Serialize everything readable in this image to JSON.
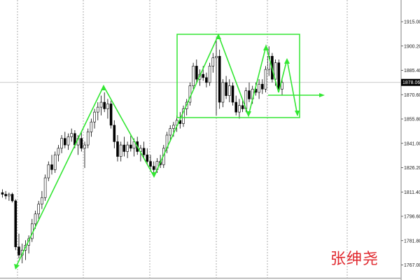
{
  "chart_data": {
    "type": "candlestick",
    "title": "",
    "ylim": [
      1763,
      1922
    ],
    "grid": {
      "vertical": true,
      "horizontal": false
    },
    "y_ticks": [
      "1915.00",
      "1900.20",
      "1885.40",
      "1870.60",
      "1855.80",
      "1841.00",
      "1826.20",
      "1811.40",
      "1796.60",
      "1781.80",
      "1767.00"
    ],
    "current_price": "1878.06",
    "colors": {
      "bull_body": "#ffffff",
      "bear_body": "#000000",
      "outline": "#000000",
      "drawing": "#33e633",
      "price_label_bg": "#000000"
    },
    "ohlc": [
      [
        1811,
        1813,
        1808,
        1810
      ],
      [
        1810,
        1812,
        1807,
        1809
      ],
      [
        1809,
        1811,
        1806,
        1810
      ],
      [
        1810,
        1811,
        1805,
        1806
      ],
      [
        1806,
        1807,
        1776,
        1778
      ],
      [
        1778,
        1786,
        1771,
        1773
      ],
      [
        1773,
        1780,
        1768,
        1776
      ],
      [
        1776,
        1782,
        1770,
        1779
      ],
      [
        1779,
        1785,
        1774,
        1783
      ],
      [
        1783,
        1795,
        1781,
        1792
      ],
      [
        1792,
        1800,
        1789,
        1798
      ],
      [
        1798,
        1806,
        1795,
        1804
      ],
      [
        1804,
        1812,
        1801,
        1808
      ],
      [
        1808,
        1822,
        1806,
        1820
      ],
      [
        1820,
        1830,
        1818,
        1828
      ],
      [
        1828,
        1834,
        1822,
        1825
      ],
      [
        1825,
        1836,
        1823,
        1834
      ],
      [
        1834,
        1840,
        1830,
        1838
      ],
      [
        1838,
        1846,
        1835,
        1844
      ],
      [
        1844,
        1848,
        1838,
        1840
      ],
      [
        1840,
        1847,
        1837,
        1845
      ],
      [
        1845,
        1850,
        1842,
        1847
      ],
      [
        1847,
        1849,
        1838,
        1840
      ],
      [
        1840,
        1846,
        1834,
        1844
      ],
      [
        1844,
        1848,
        1836,
        1838
      ],
      [
        1838,
        1842,
        1826,
        1840
      ],
      [
        1840,
        1850,
        1838,
        1848
      ],
      [
        1848,
        1856,
        1845,
        1854
      ],
      [
        1854,
        1862,
        1850,
        1860
      ],
      [
        1860,
        1866,
        1855,
        1863
      ],
      [
        1863,
        1870,
        1858,
        1866
      ],
      [
        1866,
        1872,
        1860,
        1862
      ],
      [
        1862,
        1868,
        1856,
        1865
      ],
      [
        1865,
        1867,
        1850,
        1852
      ],
      [
        1852,
        1855,
        1838,
        1842
      ],
      [
        1842,
        1846,
        1830,
        1833
      ],
      [
        1833,
        1842,
        1830,
        1840
      ],
      [
        1840,
        1845,
        1833,
        1836
      ],
      [
        1836,
        1842,
        1832,
        1840
      ],
      [
        1840,
        1846,
        1836,
        1838
      ],
      [
        1838,
        1844,
        1833,
        1842
      ],
      [
        1842,
        1845,
        1834,
        1836
      ],
      [
        1836,
        1840,
        1830,
        1838
      ],
      [
        1838,
        1842,
        1832,
        1834
      ],
      [
        1834,
        1838,
        1828,
        1830
      ],
      [
        1830,
        1834,
        1824,
        1827
      ],
      [
        1827,
        1830,
        1822,
        1825
      ],
      [
        1825,
        1832,
        1823,
        1830
      ],
      [
        1830,
        1834,
        1826,
        1828
      ],
      [
        1828,
        1840,
        1826,
        1838
      ],
      [
        1838,
        1848,
        1835,
        1846
      ],
      [
        1846,
        1852,
        1842,
        1850
      ],
      [
        1850,
        1854,
        1845,
        1852
      ],
      [
        1852,
        1858,
        1848,
        1855
      ],
      [
        1855,
        1860,
        1850,
        1853
      ],
      [
        1853,
        1864,
        1851,
        1862
      ],
      [
        1862,
        1868,
        1858,
        1866
      ],
      [
        1866,
        1878,
        1864,
        1876
      ],
      [
        1876,
        1890,
        1874,
        1888
      ],
      [
        1888,
        1892,
        1878,
        1880
      ],
      [
        1880,
        1886,
        1876,
        1883
      ],
      [
        1883,
        1888,
        1879,
        1881
      ],
      [
        1881,
        1884,
        1875,
        1878
      ],
      [
        1878,
        1890,
        1876,
        1888
      ],
      [
        1888,
        1896,
        1884,
        1893
      ],
      [
        1893,
        1904,
        1858,
        1894
      ],
      [
        1894,
        1898,
        1862,
        1866
      ],
      [
        1866,
        1880,
        1863,
        1878
      ],
      [
        1878,
        1882,
        1868,
        1870
      ],
      [
        1870,
        1880,
        1866,
        1876
      ],
      [
        1876,
        1878,
        1864,
        1866
      ],
      [
        1866,
        1870,
        1858,
        1860
      ],
      [
        1860,
        1868,
        1856,
        1864
      ],
      [
        1864,
        1868,
        1860,
        1862
      ],
      [
        1862,
        1875,
        1860,
        1873
      ],
      [
        1873,
        1878,
        1866,
        1868
      ],
      [
        1868,
        1876,
        1865,
        1874
      ],
      [
        1874,
        1878,
        1870,
        1872
      ],
      [
        1872,
        1880,
        1868,
        1877
      ],
      [
        1877,
        1880,
        1871,
        1874
      ],
      [
        1874,
        1888,
        1872,
        1886
      ],
      [
        1886,
        1900,
        1882,
        1894
      ],
      [
        1894,
        1896,
        1878,
        1880
      ],
      [
        1880,
        1892,
        1876,
        1890
      ],
      [
        1890,
        1892,
        1872,
        1874
      ],
      [
        1874,
        1880,
        1870,
        1878
      ]
    ]
  },
  "watermark": "张绅尧"
}
